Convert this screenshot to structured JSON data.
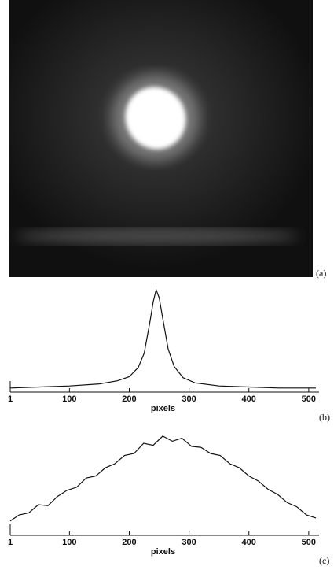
{
  "image_label": "(a)",
  "chart_data": [
    {
      "type": "line",
      "xlabel": "pixels",
      "panel_label": "(b)",
      "xlim": [
        1,
        512
      ],
      "ylim": [
        0,
        1
      ],
      "xticks": [
        1,
        100,
        200,
        300,
        400,
        500
      ],
      "x": [
        1,
        50,
        100,
        150,
        180,
        200,
        215,
        225,
        235,
        240,
        245,
        250,
        255,
        265,
        275,
        290,
        310,
        350,
        400,
        450,
        512
      ],
      "series": [
        {
          "name": "b",
          "color": "#111111",
          "values": [
            0.04,
            0.05,
            0.06,
            0.08,
            0.11,
            0.15,
            0.24,
            0.38,
            0.7,
            0.88,
            1.0,
            0.92,
            0.75,
            0.42,
            0.25,
            0.14,
            0.09,
            0.06,
            0.05,
            0.04,
            0.04
          ]
        }
      ]
    },
    {
      "type": "line",
      "xlabel": "pixels",
      "panel_label": "(c)",
      "xlim": [
        1,
        512
      ],
      "ylim": [
        0,
        1
      ],
      "xticks": [
        1,
        100,
        200,
        300,
        400,
        500
      ],
      "x": [
        1,
        16,
        32,
        48,
        64,
        80,
        96,
        112,
        128,
        144,
        160,
        176,
        192,
        208,
        224,
        240,
        256,
        272,
        288,
        304,
        320,
        336,
        352,
        368,
        384,
        400,
        416,
        432,
        448,
        464,
        480,
        496,
        512
      ],
      "series": [
        {
          "name": "c",
          "color": "#111111",
          "values": [
            0.14,
            0.2,
            0.22,
            0.3,
            0.29,
            0.38,
            0.44,
            0.47,
            0.56,
            0.58,
            0.66,
            0.7,
            0.78,
            0.8,
            0.9,
            0.88,
            0.97,
            0.92,
            0.95,
            0.87,
            0.86,
            0.8,
            0.78,
            0.7,
            0.66,
            0.58,
            0.53,
            0.45,
            0.4,
            0.32,
            0.28,
            0.2,
            0.17
          ]
        }
      ]
    }
  ]
}
